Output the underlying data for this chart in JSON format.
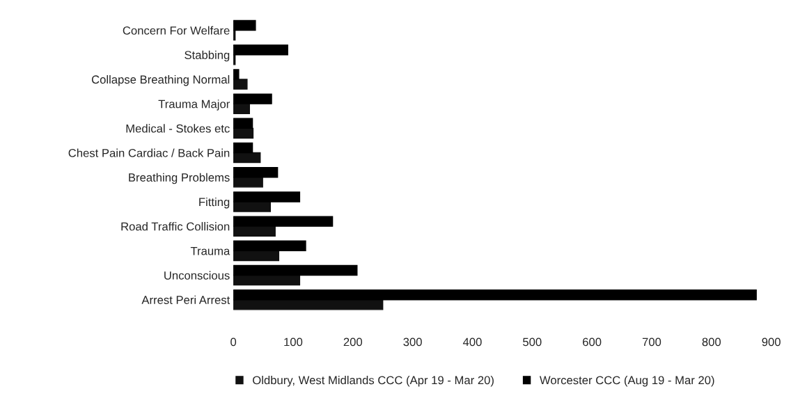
{
  "chart_data": {
    "type": "bar",
    "orientation": "horizontal",
    "categories": [
      "Concern For Welfare",
      "Stabbing",
      "Collapse Breathing Normal",
      "Trauma Major",
      "Medical - Stokes etc",
      "Chest Pain Cardiac / Back Pain",
      "Breathing Problems",
      "Fitting",
      "Road Traffic Collision",
      "Trauma",
      "Unconscious",
      "Arrest Peri Arrest"
    ],
    "series": [
      {
        "name": "Oldbury, West Midlands CCC (Apr 19 - Mar 20)",
        "color": "#111111",
        "values": [
          3,
          3,
          23,
          27,
          33,
          45,
          49,
          62,
          70,
          76,
          111,
          250
        ]
      },
      {
        "name": "Worcester CCC (Aug 19 - Mar 20)",
        "color": "#000000",
        "values": [
          37,
          91,
          9,
          64,
          32,
          32,
          74,
          111,
          166,
          121,
          207,
          875
        ]
      }
    ],
    "xlim": [
      0,
      900
    ],
    "xticks": [
      0,
      100,
      200,
      300,
      400,
      500,
      600,
      700,
      800,
      900
    ],
    "grid": false,
    "legend": "bottom"
  }
}
